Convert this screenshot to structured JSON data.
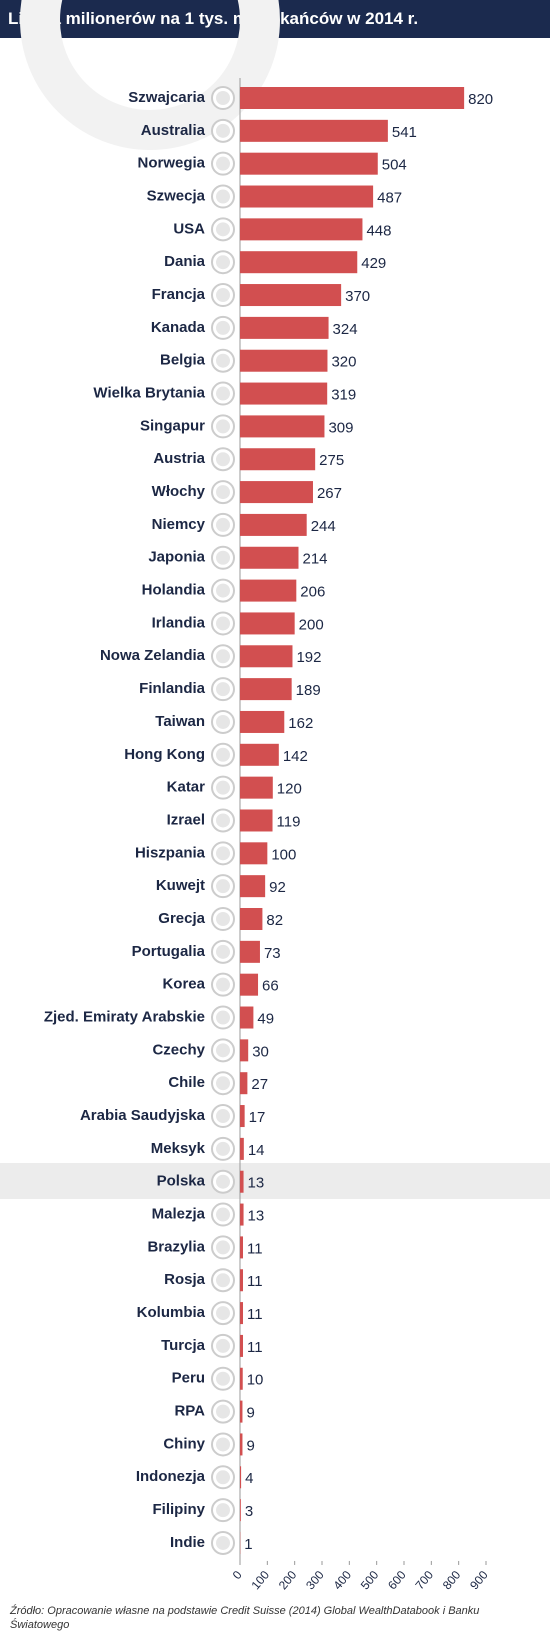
{
  "chart_data": {
    "type": "barh",
    "title": "Liczba milionerów na 1 tys. mieszkańców w 2014 r.",
    "categories": [
      "Szwajcaria",
      "Australia",
      "Norwegia",
      "Szwecja",
      "USA",
      "Dania",
      "Francja",
      "Kanada",
      "Belgia",
      "Wielka Brytania",
      "Singapur",
      "Austria",
      "Włochy",
      "Niemcy",
      "Japonia",
      "Holandia",
      "Irlandia",
      "Nowa Zelandia",
      "Finlandia",
      "Taiwan",
      "Hong Kong",
      "Katar",
      "Izrael",
      "Hiszpania",
      "Kuwejt",
      "Grecja",
      "Portugalia",
      "Korea",
      "Zjed. Emiraty Arabskie",
      "Czechy",
      "Chile",
      "Arabia Saudyjska",
      "Meksyk",
      "Polska",
      "Malezja",
      "Brazylia",
      "Rosja",
      "Kolumbia",
      "Turcja",
      "Peru",
      "RPA",
      "Chiny",
      "Indonezja",
      "Filipiny",
      "Indie"
    ],
    "values": [
      820,
      541,
      504,
      487,
      448,
      429,
      370,
      324,
      320,
      319,
      309,
      275,
      267,
      244,
      214,
      206,
      200,
      192,
      189,
      162,
      142,
      120,
      119,
      100,
      92,
      82,
      73,
      66,
      49,
      30,
      27,
      17,
      14,
      13,
      13,
      11,
      11,
      11,
      11,
      10,
      9,
      9,
      4,
      3,
      1
    ],
    "color": "#d24f50",
    "xlim": [
      0,
      900
    ],
    "xticks": [
      0,
      100,
      200,
      300,
      400,
      500,
      600,
      700,
      800,
      900
    ],
    "source": "Źródło: Opracowanie własne na podstawie Credit Suisse (2014) Global WealthDatabook i Banku Światowego"
  }
}
